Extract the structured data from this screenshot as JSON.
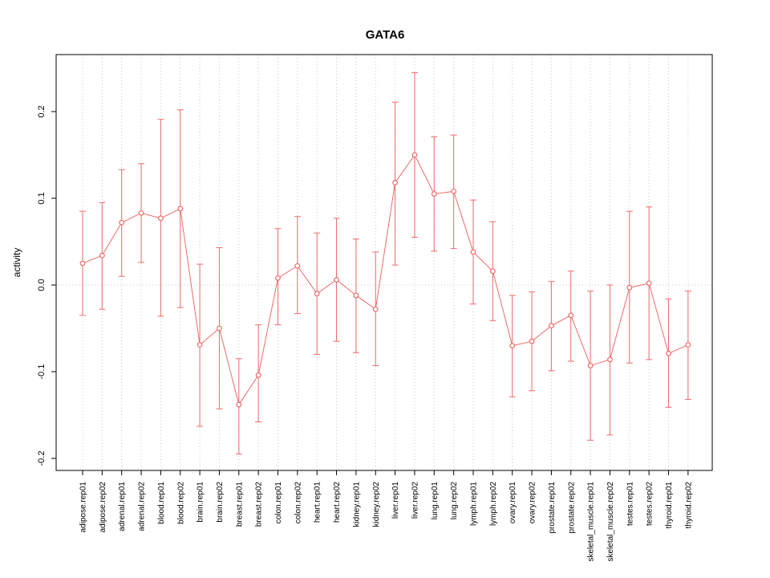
{
  "chart_data": {
    "type": "line",
    "title": "GATA6",
    "ylabel": "activity",
    "xlabel": "",
    "categories": [
      "adipose.rep01",
      "adipose.rep02",
      "adrenal.rep01",
      "adrenal.rep02",
      "blood.rep01",
      "blood.rep02",
      "brain.rep01",
      "brain.rep02",
      "breast.rep01",
      "breast.rep02",
      "colon.rep01",
      "colon.rep02",
      "heart.rep01",
      "heart.rep02",
      "kidney.rep01",
      "kidney.rep02",
      "liver.rep01",
      "liver.rep02",
      "lung.rep01",
      "lung.rep02",
      "lymph.rep01",
      "lymph.rep02",
      "ovary.rep01",
      "ovary.rep02",
      "prostate.rep01",
      "prostate.rep02",
      "skeletal_muscle.rep01",
      "skeletal_muscle.rep02",
      "testes.rep01",
      "testes.rep02",
      "thyroid.rep01",
      "thyroid.rep02"
    ],
    "series": [
      {
        "name": "activity",
        "values": [
          0.025,
          0.034,
          0.072,
          0.083,
          0.077,
          0.088,
          -0.069,
          -0.05,
          -0.138,
          -0.104,
          0.008,
          0.022,
          -0.01,
          0.006,
          -0.012,
          -0.028,
          0.118,
          0.15,
          0.105,
          0.108,
          0.038,
          0.016,
          -0.07,
          -0.065,
          -0.047,
          -0.035,
          -0.093,
          -0.086,
          -0.003,
          0.002,
          -0.079,
          -0.069
        ]
      }
    ],
    "error_low": [
      -0.035,
      -0.028,
      0.01,
      0.026,
      -0.036,
      -0.026,
      -0.163,
      -0.143,
      -0.195,
      -0.158,
      -0.046,
      -0.033,
      -0.08,
      -0.065,
      -0.078,
      -0.093,
      0.023,
      0.055,
      0.039,
      0.042,
      -0.022,
      -0.041,
      -0.129,
      -0.122,
      -0.099,
      -0.088,
      -0.179,
      -0.173,
      -0.09,
      -0.086,
      -0.141,
      -0.132
    ],
    "error_high": [
      0.085,
      0.095,
      0.133,
      0.14,
      0.191,
      0.202,
      0.024,
      0.043,
      -0.085,
      -0.046,
      0.065,
      0.079,
      0.06,
      0.077,
      0.053,
      0.038,
      0.211,
      0.245,
      0.171,
      0.173,
      0.098,
      0.073,
      -0.012,
      -0.008,
      0.004,
      0.016,
      -0.007,
      0.0,
      0.085,
      0.09,
      -0.016,
      -0.007
    ],
    "yticks": [
      -0.2,
      -0.1,
      0.0,
      0.1,
      0.2
    ],
    "ytick_labels": [
      "-0.2",
      "-0.1",
      "0.0",
      "0.1",
      "0.2"
    ],
    "ylim": [
      -0.214,
      0.266
    ],
    "zero_line": 0.0,
    "legend": "none",
    "grid": "dotted vertical per category, dotted horizontal at zero",
    "colors": {
      "series": "#ee6a6a",
      "grid": "#c9c9c9",
      "box": "#000000",
      "background": "#ffffff"
    }
  }
}
